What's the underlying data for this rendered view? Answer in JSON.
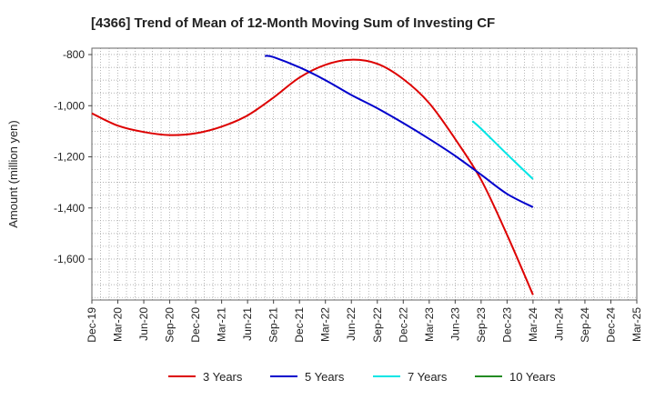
{
  "chart_data": {
    "type": "line",
    "title": "[4366]  Trend of Mean of 12-Month Moving Sum of Investing CF",
    "xlabel": "",
    "ylabel": "Amount (million yen)",
    "ylim": [
      -1760,
      -775
    ],
    "yticks": [
      -800,
      -1000,
      -1200,
      -1400,
      -1600
    ],
    "ytick_labels": [
      "-800",
      "-1,000",
      "-1,200",
      "-1,400",
      "-1,600"
    ],
    "x_start": "Dec-19",
    "x_end": "Mar-25",
    "x_ticks": [
      "Dec-19",
      "Mar-20",
      "Jun-20",
      "Sep-20",
      "Dec-20",
      "Mar-21",
      "Jun-21",
      "Sep-21",
      "Dec-21",
      "Mar-22",
      "Jun-22",
      "Sep-22",
      "Dec-22",
      "Mar-23",
      "Jun-23",
      "Sep-23",
      "Dec-23",
      "Mar-24",
      "Jun-24",
      "Sep-24",
      "Dec-24",
      "Mar-25"
    ],
    "grid": true,
    "legend_position": "bottom",
    "series": [
      {
        "name": "3 Years",
        "color": "#dd0000",
        "points": [
          [
            "Dec-19",
            -1030
          ],
          [
            "Mar-20",
            -1078
          ],
          [
            "Jun-20",
            -1103
          ],
          [
            "Sep-20",
            -1115
          ],
          [
            "Dec-20",
            -1108
          ],
          [
            "Mar-21",
            -1082
          ],
          [
            "Jun-21",
            -1038
          ],
          [
            "Sep-21",
            -968
          ],
          [
            "Dec-21",
            -890
          ],
          [
            "Mar-22",
            -840
          ],
          [
            "Jun-22",
            -820
          ],
          [
            "Sep-22",
            -836
          ],
          [
            "Dec-22",
            -896
          ],
          [
            "Mar-23",
            -990
          ],
          [
            "Jun-23",
            -1130
          ],
          [
            "Sep-23",
            -1290
          ],
          [
            "Dec-23",
            -1505
          ],
          [
            "Mar-24",
            -1740
          ]
        ]
      },
      {
        "name": "5 Years",
        "color": "#0000cc",
        "points": [
          [
            "Aug-21",
            -805
          ],
          [
            "Sep-21",
            -810
          ],
          [
            "Dec-21",
            -850
          ],
          [
            "Mar-22",
            -900
          ],
          [
            "Jun-22",
            -958
          ],
          [
            "Sep-22",
            -1010
          ],
          [
            "Dec-22",
            -1068
          ],
          [
            "Mar-23",
            -1130
          ],
          [
            "Jun-23",
            -1196
          ],
          [
            "Sep-23",
            -1270
          ],
          [
            "Dec-23",
            -1345
          ],
          [
            "Mar-24",
            -1397
          ]
        ]
      },
      {
        "name": "7 Years",
        "color": "#00e5e5",
        "points": [
          [
            "Aug-23",
            -1060
          ],
          [
            "Sep-23",
            -1090
          ],
          [
            "Dec-23",
            -1190
          ],
          [
            "Mar-24",
            -1287
          ]
        ]
      },
      {
        "name": "10 Years",
        "color": "#228b22",
        "points": []
      }
    ]
  }
}
